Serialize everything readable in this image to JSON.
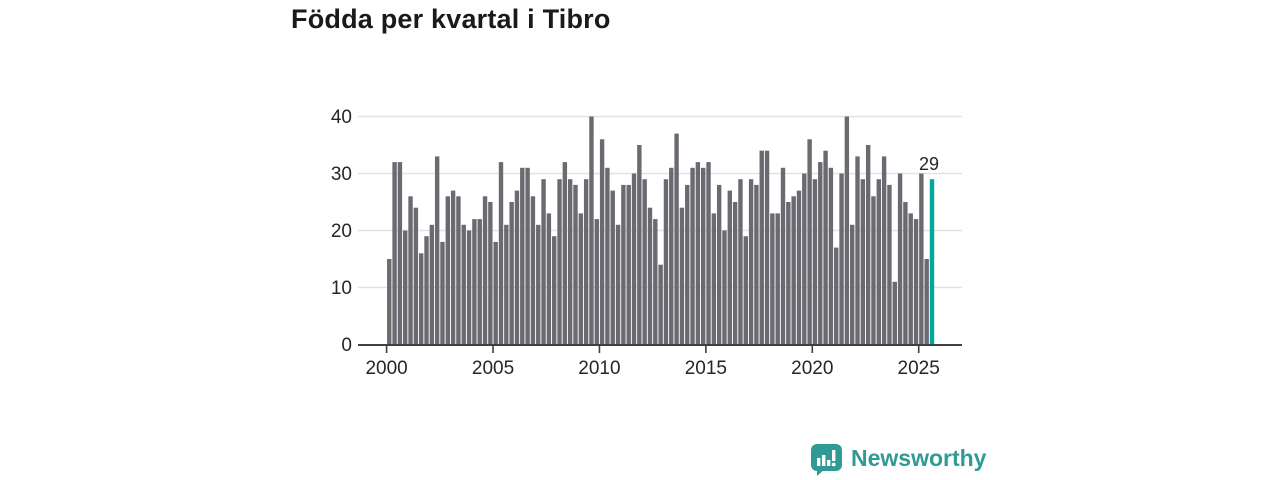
{
  "title": "Födda per kvartal i Tibro",
  "branding": {
    "name": "Newsworthy",
    "logo_icon": "bar-chart-speech-bubble-icon",
    "color": "#2f9b94"
  },
  "chart_data": {
    "type": "bar",
    "title": "Födda per kvartal i Tibro",
    "x_axis": "quarters from 2000 Q1 to 2025 Q3",
    "x_start_year": 2000,
    "periods_per_year": 4,
    "x_tick_labels": [
      "2000",
      "2005",
      "2010",
      "2015",
      "2020",
      "2025"
    ],
    "y_tick_labels": [
      "0",
      "10",
      "20",
      "30",
      "40"
    ],
    "ylim": [
      0,
      40
    ],
    "grid": "horizontal",
    "legend": "none",
    "bar_color": "#6a6a71",
    "highlight_color": "#00a79b",
    "highlight_index": 102,
    "highlight_value_label": "29",
    "values": [
      15,
      32,
      32,
      20,
      26,
      24,
      16,
      19,
      21,
      33,
      18,
      26,
      27,
      26,
      21,
      20,
      22,
      22,
      26,
      25,
      18,
      32,
      21,
      25,
      27,
      31,
      31,
      26,
      21,
      29,
      23,
      19,
      29,
      32,
      29,
      28,
      23,
      29,
      40,
      22,
      36,
      31,
      27,
      21,
      28,
      28,
      30,
      35,
      29,
      24,
      22,
      14,
      29,
      31,
      37,
      24,
      28,
      31,
      32,
      31,
      32,
      23,
      28,
      20,
      27,
      25,
      29,
      19,
      29,
      28,
      34,
      34,
      23,
      23,
      31,
      25,
      26,
      27,
      30,
      36,
      29,
      32,
      34,
      31,
      17,
      30,
      40,
      21,
      33,
      29,
      35,
      26,
      29,
      33,
      28,
      11,
      30,
      25,
      23,
      22,
      30,
      15,
      29
    ]
  }
}
